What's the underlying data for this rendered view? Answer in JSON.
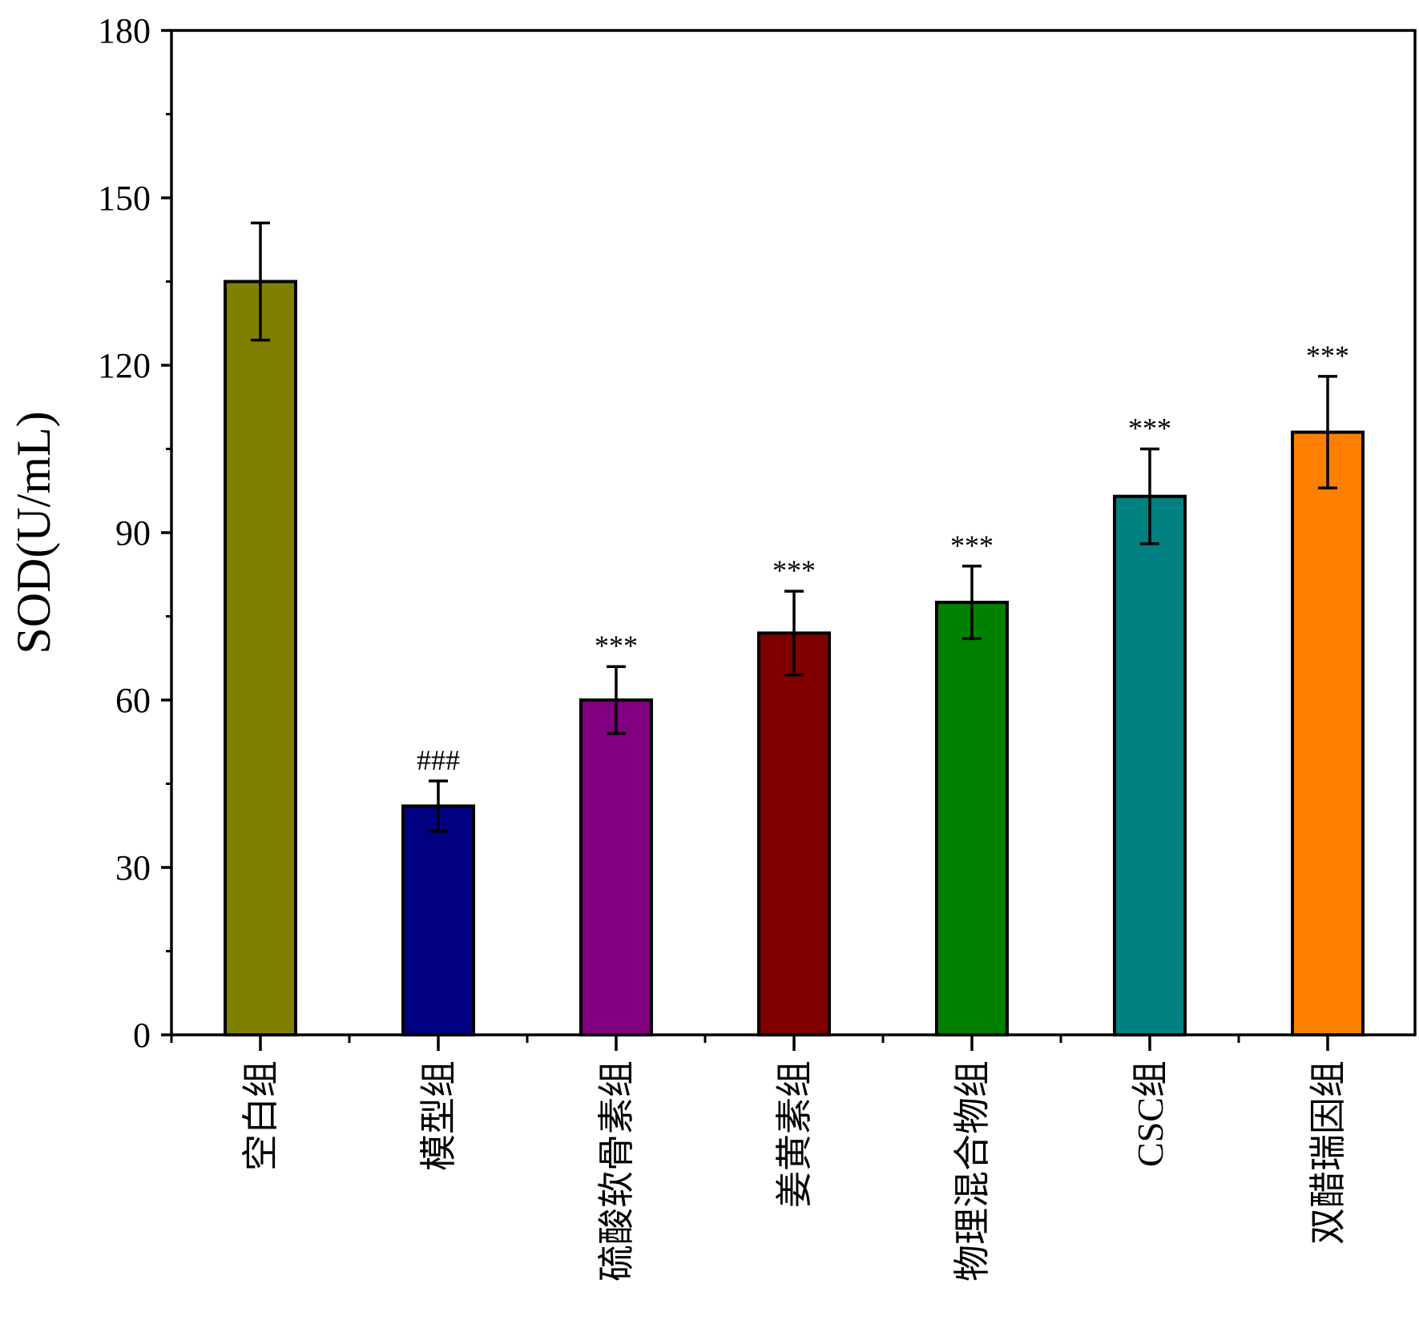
{
  "chart_data": {
    "type": "bar",
    "title": "",
    "xlabel": "",
    "ylabel": "SOD(U/mL)",
    "ylim": [
      0,
      180
    ],
    "yticks": [
      0,
      30,
      60,
      90,
      120,
      150,
      180
    ],
    "grid": false,
    "legend": "none",
    "categories": [
      "空白组",
      "模型组",
      "硫酸软骨素组",
      "姜黄素组",
      "物理混合物组",
      "CSC组",
      "双醋瑞因组"
    ],
    "values": [
      135,
      41,
      60,
      72,
      77.5,
      96.5,
      108
    ],
    "errors": [
      10.5,
      4.5,
      6,
      7.5,
      6.5,
      8.5,
      10
    ],
    "annotations": [
      "",
      "###",
      "***",
      "***",
      "***",
      "***",
      "***"
    ],
    "colors": [
      "#808000",
      "#000080",
      "#800080",
      "#800000",
      "#008000",
      "#008080",
      "#ff8000"
    ]
  }
}
